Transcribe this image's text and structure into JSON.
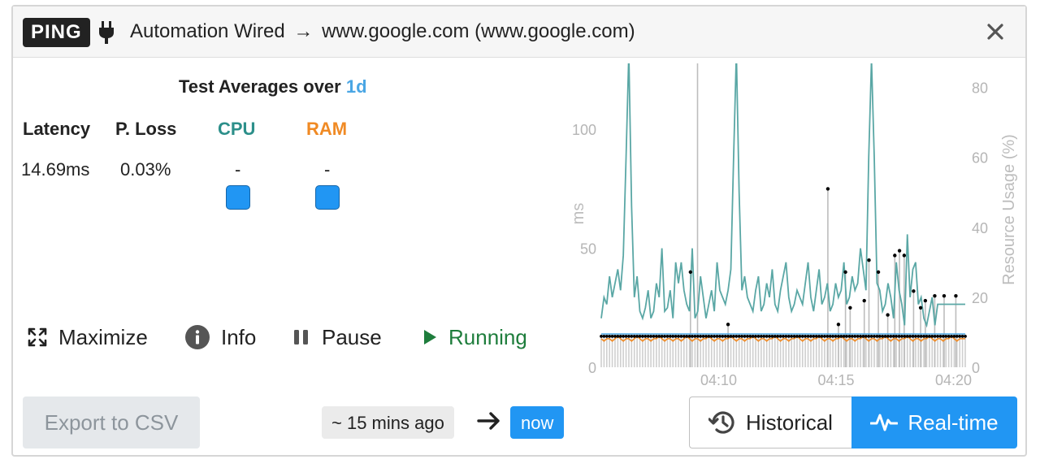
{
  "header": {
    "badge": "PING",
    "source": "Automation Wired",
    "target": "www.google.com (www.google.com)",
    "arrow": "→"
  },
  "averages": {
    "title_prefix": "Test Averages over",
    "period": "1d",
    "columns": {
      "latency": {
        "label": "Latency",
        "value": "14.69ms"
      },
      "loss": {
        "label": "P. Loss",
        "value": "0.03%"
      },
      "cpu": {
        "label": "CPU",
        "value": "-"
      },
      "ram": {
        "label": "RAM",
        "value": "-"
      }
    },
    "colors": {
      "cpu": "#2c8f8a",
      "ram": "#f08a24",
      "swatch": "#2196f3"
    }
  },
  "controls": {
    "maximize": "Maximize",
    "info": "Info",
    "pause": "Pause",
    "running": "Running",
    "running_color": "#1e7d3c"
  },
  "footer": {
    "export": "Export to CSV",
    "since": "~ 15 mins ago",
    "arrow": "→",
    "now": "now",
    "historical": "Historical",
    "realtime": "Real-time"
  },
  "chart_data": {
    "type": "line",
    "ylabel": "ms",
    "y2label": "Resource Usage (%)",
    "ylim": [
      0,
      125
    ],
    "y2lim": [
      0,
      85
    ],
    "yticks": [
      0,
      50,
      100
    ],
    "y2ticks": [
      0,
      20,
      40,
      60,
      80
    ],
    "x_range_min": [
      0,
      15.5
    ],
    "xticks": [
      {
        "label": "04:10",
        "t": 5.0
      },
      {
        "label": "04:15",
        "t": 10.0
      },
      {
        "label": "04:20",
        "t": 15.0
      }
    ],
    "series": [
      {
        "color": "#5aa7a5",
        "values": [
          14,
          20,
          18,
          26,
          20,
          24,
          28,
          22,
          32,
          60,
          90,
          46,
          20,
          26,
          16,
          14,
          17,
          22,
          14,
          16,
          24,
          20,
          34,
          16,
          17,
          22,
          14,
          30,
          24,
          30,
          22,
          18,
          16,
          34,
          14,
          16,
          26,
          20,
          14,
          18,
          22,
          16,
          30,
          22,
          20,
          18,
          22,
          28,
          60,
          90,
          50,
          22,
          26,
          20,
          18,
          16,
          22,
          26,
          16,
          18,
          24,
          20,
          28,
          18,
          16,
          22,
          26,
          30,
          20,
          16,
          18,
          22,
          20,
          18,
          24,
          30,
          20,
          16,
          22,
          28,
          18,
          20,
          24,
          16,
          18,
          24,
          20,
          22,
          30,
          18,
          20,
          26,
          22,
          24,
          34,
          28,
          22,
          60,
          88,
          60,
          24,
          22,
          16,
          18,
          24,
          20,
          14,
          30,
          22,
          18,
          12,
          38,
          20,
          28,
          30,
          18,
          20,
          14,
          12,
          16,
          20,
          12,
          18,
          18,
          18,
          18,
          18,
          18,
          18,
          18,
          18,
          18,
          18
        ]
      },
      {
        "color": "#f08a24",
        "values": [
          12,
          11,
          12,
          12,
          11,
          12,
          13,
          12,
          11,
          12,
          12,
          11,
          12,
          13,
          12,
          11,
          12,
          12,
          11,
          12,
          12,
          13,
          12,
          11,
          12,
          12,
          11,
          12,
          12,
          11,
          12,
          13,
          12,
          11,
          12,
          12,
          11,
          12,
          12,
          13,
          12,
          11,
          12,
          12,
          11,
          12,
          12,
          13,
          12,
          11,
          12,
          12,
          11,
          12,
          12,
          13,
          12,
          11,
          12,
          12,
          11,
          12,
          12,
          13,
          12,
          11,
          12,
          12,
          11,
          12,
          12,
          13,
          12,
          11,
          12,
          12,
          11,
          12,
          12,
          13,
          12,
          11,
          12,
          12,
          11,
          12,
          12,
          13,
          12,
          11,
          12,
          12,
          11,
          12,
          12,
          13,
          12,
          11,
          12,
          12,
          11,
          12,
          12,
          13,
          12,
          11,
          12,
          12,
          11,
          12,
          12,
          13,
          12,
          11,
          12,
          12,
          11,
          12,
          12,
          13,
          12,
          11,
          12,
          12,
          11,
          12,
          12,
          13,
          12,
          11,
          12,
          12,
          12
        ]
      },
      {
        "color": "#4aa6e4",
        "values": [
          14,
          14,
          14,
          14,
          14,
          14,
          14,
          14,
          14,
          14,
          14,
          14,
          14,
          14,
          14,
          14,
          14,
          14,
          14,
          14,
          14,
          14,
          14,
          14,
          14,
          14,
          14,
          14,
          14,
          14,
          14,
          14,
          14,
          14,
          14,
          14,
          14,
          14,
          14,
          14,
          14,
          14,
          14,
          14,
          14,
          14,
          14,
          14,
          14,
          14,
          14,
          14,
          14,
          14,
          14,
          14,
          14,
          14,
          14,
          14,
          14,
          14,
          14,
          14,
          14,
          14,
          14,
          14,
          14,
          14,
          14,
          14,
          14,
          14,
          14,
          14,
          14,
          14,
          14,
          14,
          14,
          14,
          14,
          14,
          14,
          14,
          14,
          14,
          14,
          14,
          14,
          14,
          14,
          14,
          14,
          14,
          14,
          14,
          14,
          14,
          14,
          14,
          14,
          14,
          14,
          14,
          14,
          14,
          14,
          14,
          14,
          14,
          14,
          14,
          14,
          14,
          14,
          14,
          14,
          14,
          14,
          14,
          14,
          14,
          14,
          14,
          14,
          14,
          14,
          14,
          14,
          14,
          14
        ]
      }
    ],
    "latency_ms": [
      13,
      13,
      13,
      13,
      13,
      13,
      13,
      13,
      13,
      13,
      13,
      13,
      13,
      13,
      13,
      13,
      13,
      13,
      13,
      13,
      13,
      13,
      13,
      13,
      13,
      13,
      13,
      13,
      13,
      13,
      13,
      13,
      13,
      13,
      13,
      13,
      13,
      13,
      13,
      13,
      13,
      13,
      13,
      13,
      13,
      13,
      13,
      13,
      13,
      13,
      13,
      13,
      13,
      13,
      13,
      13,
      13,
      13,
      13,
      13,
      13,
      13,
      13,
      13,
      13,
      13,
      13,
      13,
      13,
      13,
      13,
      13,
      13,
      13,
      13,
      13,
      13,
      13,
      13,
      13,
      13,
      13,
      13,
      13,
      13,
      13,
      13,
      13,
      13,
      13,
      13,
      13,
      13,
      13,
      13,
      13,
      13,
      13,
      13,
      13,
      13,
      13,
      13,
      13,
      13,
      13,
      13,
      13,
      13,
      13,
      13,
      13,
      13,
      13,
      13,
      13,
      13,
      13,
      13,
      13,
      13,
      13,
      13,
      13,
      13,
      13,
      13,
      13,
      13,
      13,
      13,
      13,
      13
    ],
    "latency_spikes": [
      {
        "t": 4.1,
        "v": 133
      },
      {
        "t": 3.8,
        "v": 40
      },
      {
        "t": 9.65,
        "v": 75
      },
      {
        "t": 5.4,
        "v": 18
      },
      {
        "t": 10.6,
        "v": 25
      },
      {
        "t": 11.4,
        "v": 45
      },
      {
        "t": 11.8,
        "v": 40
      },
      {
        "t": 10.4,
        "v": 40
      },
      {
        "t": 12.5,
        "v": 47
      },
      {
        "t": 12.7,
        "v": 49
      },
      {
        "t": 12.9,
        "v": 47
      },
      {
        "t": 13.3,
        "v": 32
      },
      {
        "t": 13.6,
        "v": 25
      },
      {
        "t": 13.8,
        "v": 28
      },
      {
        "t": 14.2,
        "v": 30
      },
      {
        "t": 14.6,
        "v": 30
      },
      {
        "t": 15.1,
        "v": 30
      },
      {
        "t": 11.2,
        "v": 28
      },
      {
        "t": 12.2,
        "v": 22
      },
      {
        "t": 10.1,
        "v": 18
      }
    ]
  }
}
